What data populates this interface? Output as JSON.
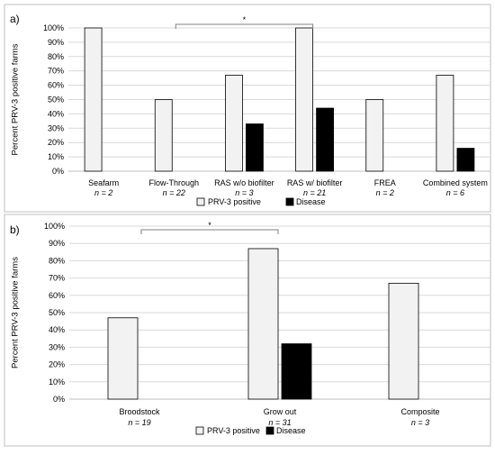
{
  "chart_data": [
    {
      "type": "bar",
      "panel_label": "a)",
      "categories": [
        "Seafarm",
        "Flow-Through",
        "RAS w/o biofilter",
        "RAS w/ biofilter",
        "FREA",
        "Combined system"
      ],
      "n_labels": [
        "n = 2",
        "n = 22",
        "n = 3",
        "n = 21",
        "n = 2",
        "n = 6"
      ],
      "series": [
        {
          "name": "PRV-3 positive",
          "color": "#f2f2f2",
          "values": [
            100,
            50,
            67,
            100,
            50,
            67
          ]
        },
        {
          "name": "Disease",
          "color": "#000000",
          "values": [
            0,
            0,
            33,
            44,
            0,
            16
          ]
        }
      ],
      "ylabel": "Percent PRV-3 positive farms",
      "yticks": [
        "0%",
        "10%",
        "20%",
        "30%",
        "40%",
        "50%",
        "60%",
        "70%",
        "80%",
        "90%",
        "100%"
      ],
      "ylim": [
        0,
        100
      ],
      "significance": {
        "from": "Flow-Through",
        "to": "RAS w/ biofilter",
        "label": "*"
      },
      "legend": "bottom"
    },
    {
      "type": "bar",
      "panel_label": "b)",
      "categories": [
        "Broodstock",
        "Grow out",
        "Composite"
      ],
      "n_labels": [
        "n = 19",
        "n = 31",
        "n = 3"
      ],
      "series": [
        {
          "name": "PRV-3 positive",
          "color": "#f2f2f2",
          "values": [
            47,
            87,
            67
          ]
        },
        {
          "name": "Disease",
          "color": "#000000",
          "values": [
            0,
            32,
            0
          ]
        }
      ],
      "ylabel": "Percent PRV-3 positive farms",
      "yticks": [
        "0%",
        "10%",
        "20%",
        "30%",
        "40%",
        "50%",
        "60%",
        "70%",
        "80%",
        "90%",
        "100%"
      ],
      "ylim": [
        0,
        100
      ],
      "significance": {
        "from": "Broodstock",
        "to": "Grow out",
        "label": "*"
      },
      "legend": "bottom"
    }
  ]
}
